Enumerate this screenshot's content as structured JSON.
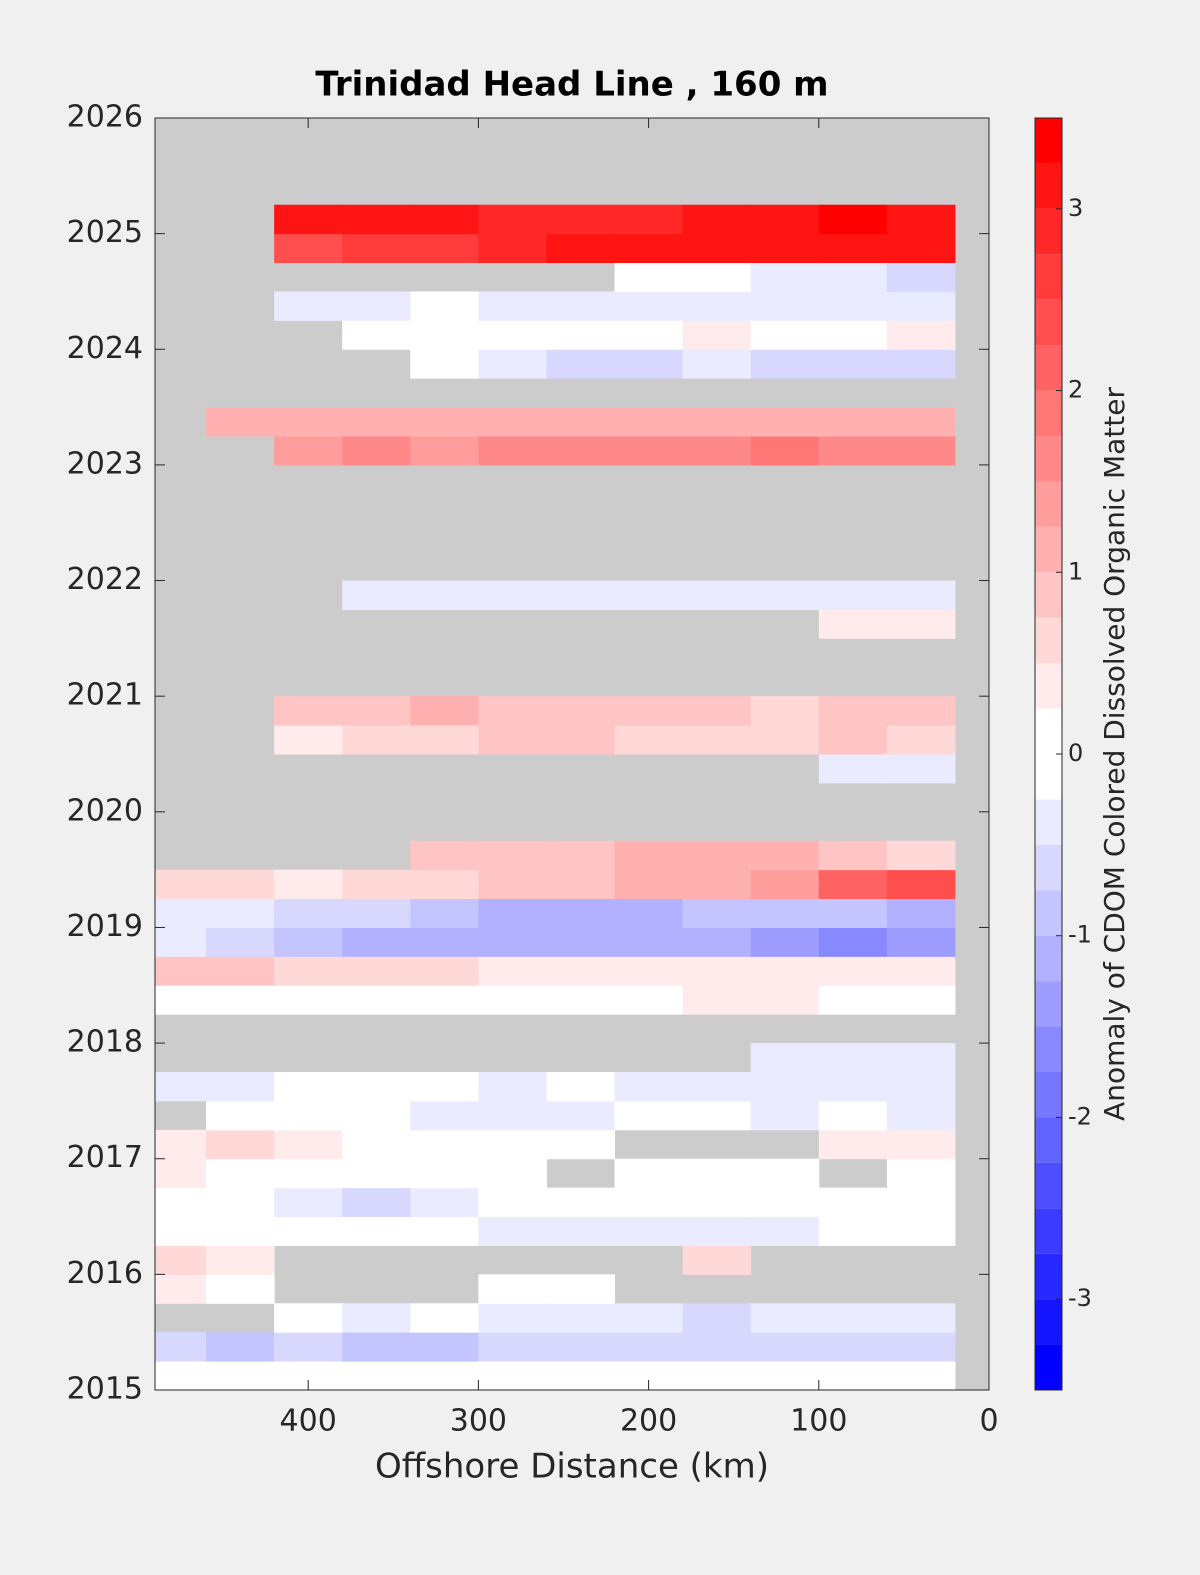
{
  "chart_data": {
    "type": "heatmap",
    "title": "Trinidad Head Line , 160 m",
    "xlabel": "Offshore Distance (km)",
    "colorbar_label": "Anomaly of CDOM Colored Dissolved Organic Matter",
    "x": [
      480,
      440,
      400,
      360,
      320,
      280,
      240,
      200,
      160,
      120,
      80,
      40
    ],
    "y": [
      2015.125,
      2015.375,
      2015.625,
      2015.875,
      2016.125,
      2016.375,
      2016.625,
      2016.875,
      2017.125,
      2017.375,
      2017.625,
      2017.875,
      2018.125,
      2018.375,
      2018.625,
      2018.875,
      2019.125,
      2019.375,
      2019.625,
      2019.875,
      2020.125,
      2020.375,
      2020.625,
      2020.875,
      2021.125,
      2021.375,
      2021.625,
      2021.875,
      2022.125,
      2022.375,
      2022.625,
      2022.875,
      2023.125,
      2023.375,
      2023.625,
      2023.875,
      2024.125,
      2024.375,
      2024.625,
      2024.875,
      2025.125,
      2025.375,
      2025.625,
      2025.875
    ],
    "z": [
      [
        0,
        0,
        0,
        0,
        0,
        -0.2,
        0,
        0,
        0,
        0,
        0,
        0
      ],
      [
        -0.7,
        -0.8,
        -0.7,
        -0.8,
        -0.9,
        -0.6,
        -0.7,
        -0.6,
        -0.6,
        -0.7,
        -0.7,
        -0.6
      ],
      [
        null,
        null,
        -0.2,
        -0.3,
        -0.2,
        -0.3,
        -0.3,
        -0.4,
        -0.5,
        -0.4,
        -0.4,
        -0.4
      ],
      [
        0.3,
        0.2,
        null,
        null,
        null,
        0,
        0,
        null,
        null,
        null,
        null,
        null
      ],
      [
        0.5,
        0.4,
        null,
        null,
        null,
        null,
        null,
        null,
        0.5,
        null,
        null,
        null
      ],
      [
        0,
        0,
        -0.2,
        0,
        -0.2,
        -0.3,
        -0.4,
        -0.3,
        -0.3,
        -0.3,
        -0.2,
        0
      ],
      [
        0,
        0.2,
        -0.3,
        -0.5,
        -0.3,
        -0.2,
        0,
        0,
        0,
        0,
        0,
        0
      ],
      [
        0.3,
        0.2,
        0,
        0,
        0,
        0,
        null,
        0,
        0,
        0,
        null,
        0
      ],
      [
        0.4,
        0.5,
        0.3,
        0.2,
        0,
        0,
        0,
        null,
        null,
        null,
        0.3,
        0.3
      ],
      [
        null,
        0,
        0,
        -0.2,
        -0.3,
        -0.3,
        -0.3,
        0,
        -0.2,
        -0.3,
        0,
        -0.3
      ],
      [
        -0.3,
        -0.3,
        -0.2,
        0,
        -0.2,
        -0.3,
        -0.2,
        -0.3,
        -0.3,
        -0.3,
        -0.3,
        -0.4
      ],
      [
        null,
        null,
        null,
        null,
        null,
        null,
        null,
        null,
        null,
        -0.3,
        -0.3,
        -0.3
      ],
      [
        null,
        null,
        null,
        null,
        null,
        null,
        null,
        null,
        null,
        null,
        null,
        null
      ],
      [
        0,
        0,
        0,
        0,
        0,
        0,
        0,
        0.2,
        0.3,
        0.3,
        0,
        0
      ],
      [
        0.8,
        0.8,
        0.7,
        0.6,
        0.5,
        0.4,
        0.3,
        0.4,
        0.3,
        0.3,
        0.4,
        0.3
      ],
      [
        -0.3,
        -0.6,
        -0.8,
        -1.0,
        -1.0,
        -1.1,
        -1.1,
        -1.0,
        -1.1,
        -1.3,
        -1.5,
        -1.4
      ],
      [
        -0.4,
        -0.3,
        -0.6,
        -0.7,
        -0.9,
        -1.0,
        -1.2,
        -1.0,
        -0.9,
        -0.8,
        -0.8,
        -1.0
      ],
      [
        0.5,
        0.5,
        0.4,
        0.6,
        0.7,
        0.8,
        0.9,
        1.0,
        1.1,
        1.4,
        2.0,
        2.3
      ],
      [
        null,
        null,
        null,
        null,
        0.9,
        0.9,
        0.8,
        1.0,
        1.0,
        1.0,
        0.9,
        0.7
      ],
      [
        null,
        null,
        null,
        null,
        null,
        null,
        null,
        null,
        null,
        null,
        null,
        null
      ],
      [
        null,
        null,
        null,
        null,
        null,
        null,
        null,
        null,
        null,
        null,
        null,
        null
      ],
      [
        null,
        null,
        null,
        null,
        null,
        null,
        null,
        null,
        null,
        null,
        -0.4,
        -0.3
      ],
      [
        null,
        null,
        0.4,
        0.6,
        0.6,
        0.8,
        0.8,
        0.7,
        0.6,
        0.7,
        0.8,
        0.7
      ],
      [
        null,
        null,
        0.8,
        0.9,
        1.1,
        0.9,
        0.8,
        0.8,
        0.8,
        0.7,
        0.8,
        0.8
      ],
      [
        null,
        null,
        null,
        null,
        null,
        null,
        null,
        null,
        null,
        null,
        null,
        null
      ],
      [
        null,
        null,
        null,
        null,
        null,
        null,
        null,
        null,
        null,
        null,
        null,
        null
      ],
      [
        null,
        null,
        null,
        null,
        null,
        null,
        null,
        null,
        null,
        null,
        0.3,
        0.3
      ],
      [
        null,
        null,
        null,
        -0.3,
        -0.3,
        -0.4,
        -0.3,
        -0.3,
        -0.3,
        -0.3,
        -0.4,
        -0.3
      ],
      [
        null,
        null,
        null,
        null,
        null,
        null,
        null,
        null,
        null,
        null,
        null,
        null
      ],
      [
        null,
        null,
        null,
        null,
        null,
        null,
        null,
        null,
        null,
        null,
        null,
        null
      ],
      [
        null,
        null,
        null,
        null,
        null,
        null,
        null,
        null,
        null,
        null,
        null,
        null
      ],
      [
        null,
        null,
        null,
        null,
        null,
        null,
        null,
        null,
        null,
        null,
        null,
        null
      ],
      [
        null,
        null,
        1.3,
        1.5,
        1.4,
        1.6,
        1.5,
        1.7,
        1.6,
        1.8,
        1.6,
        1.5
      ],
      [
        null,
        1.0,
        1.1,
        1.0,
        1.0,
        1.1,
        1.1,
        1.2,
        1.2,
        1.0,
        1.1,
        1.0
      ],
      [
        null,
        null,
        null,
        null,
        null,
        null,
        null,
        null,
        null,
        null,
        null,
        null
      ],
      [
        null,
        null,
        null,
        null,
        0,
        -0.3,
        -0.5,
        -0.6,
        -0.3,
        -0.5,
        -0.7,
        -0.5
      ],
      [
        null,
        null,
        null,
        -0.2,
        0,
        -0.2,
        0,
        0,
        0.3,
        0,
        0,
        0.3
      ],
      [
        null,
        null,
        -0.3,
        -0.3,
        -0.2,
        -0.3,
        -0.4,
        -0.3,
        -0.4,
        -0.4,
        -0.3,
        -0.3
      ],
      [
        null,
        null,
        null,
        null,
        null,
        null,
        null,
        0,
        -0.2,
        -0.3,
        -0.4,
        -0.5
      ],
      [
        null,
        null,
        2.3,
        2.6,
        2.7,
        2.8,
        3.0,
        3.1,
        3.2,
        3.0,
        3.1,
        3.2
      ],
      [
        null,
        null,
        3.0,
        3.1,
        3.0,
        2.8,
        2.8,
        2.9,
        3.0,
        3.1,
        3.3,
        3.2
      ],
      [
        null,
        null,
        null,
        null,
        null,
        null,
        null,
        null,
        null,
        null,
        null,
        null
      ],
      [
        null,
        null,
        null,
        null,
        null,
        null,
        null,
        null,
        null,
        null,
        null,
        null
      ],
      [
        null,
        null,
        null,
        null,
        null,
        null,
        null,
        null,
        null,
        null,
        null,
        null
      ]
    ],
    "cell_width": 40,
    "cell_height": 0.25,
    "xlim": [
      490,
      0
    ],
    "ylim": [
      2015,
      2026
    ],
    "xticks": [
      400,
      300,
      200,
      100,
      0
    ],
    "yticks": [
      2015,
      2016,
      2017,
      2018,
      2019,
      2020,
      2021,
      2022,
      2023,
      2024,
      2025,
      2026
    ],
    "clim": [
      -3.5,
      3.5
    ],
    "cticks": [
      -3,
      -2,
      -1,
      0,
      1,
      2,
      3
    ],
    "level_step": 0.25,
    "positive_color": "#ff0000",
    "negative_color": "#0000ff",
    "missing_color": "#cccccc"
  }
}
